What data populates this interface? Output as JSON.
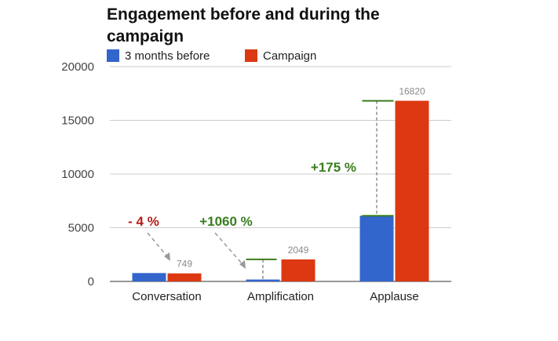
{
  "chart_data": {
    "type": "bar",
    "title_lines": [
      "Engagement before and during the",
      "campaign"
    ],
    "categories": [
      "Conversation",
      "Amplification",
      "Applause"
    ],
    "series": [
      {
        "name": "3 months before",
        "values": [
          780,
          177,
          6116
        ]
      },
      {
        "name": "Campaign",
        "values": [
          749,
          2049,
          16820
        ]
      }
    ],
    "data_labels": [
      "749",
      "2049",
      "16820"
    ],
    "y_ticks": [
      0,
      5000,
      10000,
      15000,
      20000
    ],
    "y_tick_labels": [
      "0",
      "5000",
      "10000",
      "15000",
      "20000"
    ],
    "ylim": [
      0,
      20000
    ],
    "grid": true,
    "legend_position": "top",
    "xlabel": "",
    "ylabel": "",
    "annotations": [
      {
        "text": "- 4 %",
        "category": "Conversation",
        "color": "#b71c1c"
      },
      {
        "text": "+1060 %",
        "category": "Amplification",
        "color": "#3a7d1e"
      },
      {
        "text": "+175 %",
        "category": "Applause",
        "color": "#3a7d1e"
      }
    ]
  },
  "colors": {
    "before": "#3366cc",
    "campaign": "#dc3912",
    "grid": "#cccccc",
    "axis": "#333333"
  }
}
